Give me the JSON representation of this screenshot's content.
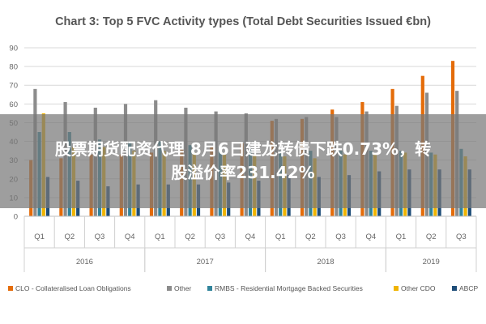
{
  "banner": {
    "line1": "股票期货配资代理 8月6日建龙转债下跌0.73%，转",
    "line2": "股溢价率231.42%"
  },
  "chart_data": {
    "type": "bar",
    "title": "Chart 3: Top 5 FVC Activity types (Total Debt Securities Issued €bn)",
    "xlabel": "",
    "ylabel": "",
    "ylim": [
      0,
      90
    ],
    "yticks": [
      0,
      10,
      20,
      30,
      40,
      50,
      60,
      70,
      80,
      90
    ],
    "grid": true,
    "legend_position": "bottom",
    "categories": [
      "Q1",
      "Q2",
      "Q3",
      "Q4",
      "Q1",
      "Q2",
      "Q3",
      "Q4",
      "Q1",
      "Q2",
      "Q3",
      "Q4",
      "Q1",
      "Q2",
      "Q3"
    ],
    "groups": [
      {
        "label": "2016",
        "count": 4
      },
      {
        "label": "2017",
        "count": 4
      },
      {
        "label": "2018",
        "count": 4
      },
      {
        "label": "2019",
        "count": 3
      }
    ],
    "series": [
      {
        "name": "CLO - Collateralised Loan Obligations",
        "color": "#e46c0a",
        "values": [
          30,
          31,
          33,
          33,
          34,
          36,
          37,
          39,
          51,
          52,
          57,
          61,
          68,
          75,
          83
        ]
      },
      {
        "name": "Other",
        "color": "#8c8c8c",
        "values": [
          68,
          61,
          58,
          60,
          62,
          58,
          56,
          55,
          52,
          53,
          53,
          56,
          59,
          66,
          67
        ]
      },
      {
        "name": "RMBS - Residential Mortgage Backed Securities",
        "color": "#31849b",
        "values": [
          45,
          45,
          41,
          40,
          40,
          38,
          37,
          36,
          35,
          35,
          35,
          35,
          35,
          34,
          36
        ]
      },
      {
        "name": "Other CDO",
        "color": "#f0b400",
        "values": [
          55,
          37,
          37,
          35,
          35,
          34,
          33,
          33,
          32,
          31,
          33,
          33,
          34,
          33,
          32
        ]
      },
      {
        "name": "ABCP",
        "color": "#1f4e79",
        "values": [
          21,
          19,
          16,
          17,
          17,
          17,
          18,
          19,
          22,
          21,
          22,
          24,
          25,
          25,
          25
        ]
      }
    ]
  }
}
